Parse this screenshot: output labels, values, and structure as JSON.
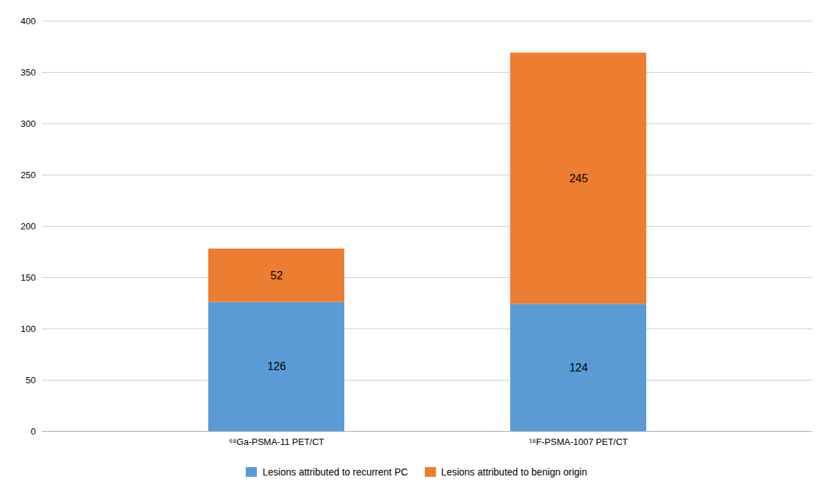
{
  "chart_data": {
    "type": "bar",
    "stacked": true,
    "categories": [
      "⁶⁸Ga-PSMA-11 PET/CT",
      "¹⁸F-PSMA-1007 PET/CT"
    ],
    "series": [
      {
        "name": "Lesions attributed to recurrent PC",
        "color": "#5B9BD5",
        "values": [
          126,
          124
        ]
      },
      {
        "name": "Lesions attributed to benign origin",
        "color": "#ED7D31",
        "values": [
          52,
          245
        ]
      }
    ],
    "ylim": [
      0,
      400
    ],
    "yticks": [
      0,
      50,
      100,
      150,
      200,
      250,
      300,
      350,
      400
    ],
    "grid": true,
    "data_labels": true,
    "legend": "bottom"
  }
}
